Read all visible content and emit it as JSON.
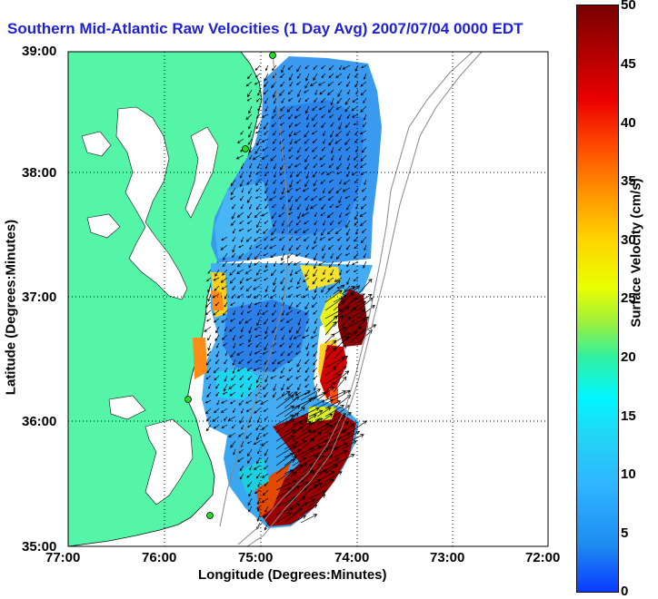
{
  "title": "Southern Mid-Atlantic Raw Velocities (1 Day Avg) 2007/07/04 0000 EDT",
  "xlabel": "Longitude (Degrees:Minutes)",
  "ylabel": "Latitude (Degrees:Minutes)",
  "lat_ticks": [
    "39:00",
    "38:00",
    "37:00",
    "36:00",
    "35:00"
  ],
  "lon_ticks": [
    "77:00",
    "76:00",
    "75:00",
    "74:00",
    "73:00",
    "72:00"
  ],
  "colorbar": {
    "label": "Surface Velocity (cm/s)",
    "ticks": [
      "50",
      "45",
      "40",
      "35",
      "30",
      "25",
      "20",
      "15",
      "10",
      "5",
      "0"
    ],
    "min": 0,
    "max": 50
  },
  "colors": {
    "land": "#55f5a8",
    "grid": "#000000",
    "bathymetry": "#888888",
    "station": "#22dd22"
  }
}
